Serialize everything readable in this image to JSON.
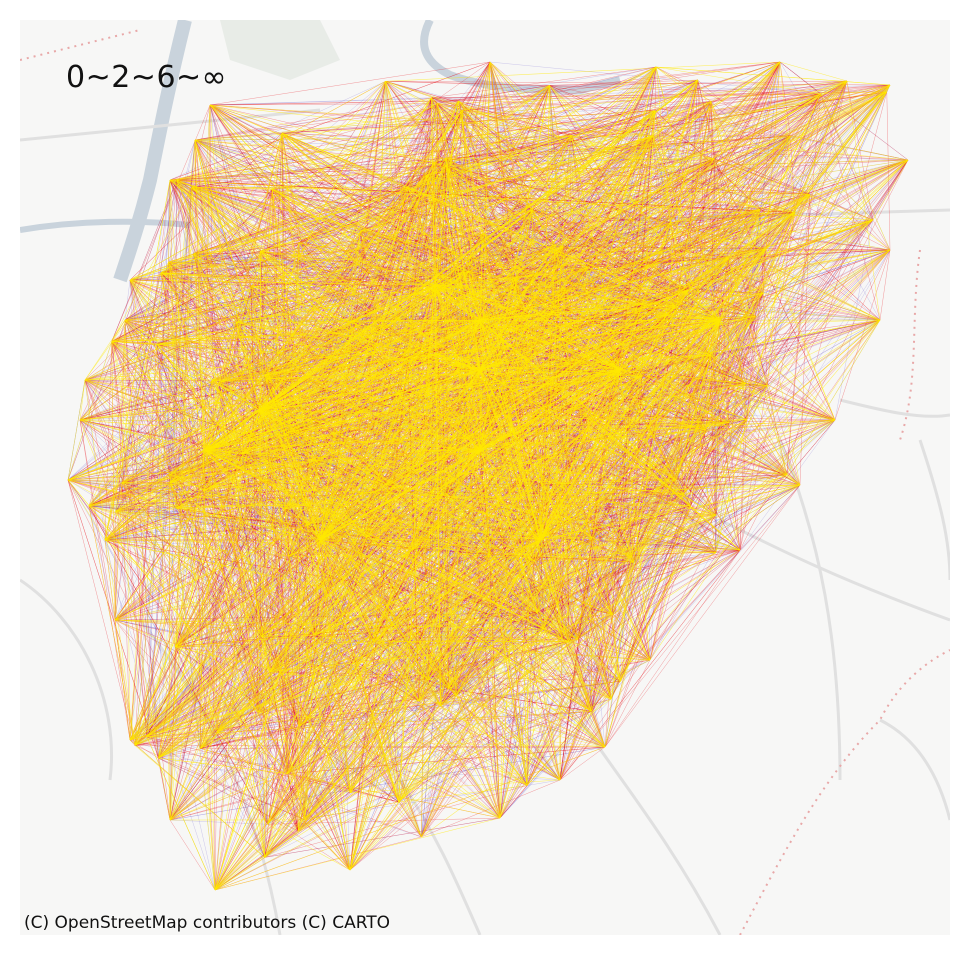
{
  "legend": {
    "title": "0~2~6~∞",
    "breaks": [
      0,
      2,
      6,
      "∞"
    ],
    "classes": [
      {
        "range": "0~2",
        "color": "#6a5acd"
      },
      {
        "range": "2~6",
        "color": "#e8151f"
      },
      {
        "range": "6~∞",
        "color": "#ffea00"
      }
    ]
  },
  "attribution": "(C) OpenStreetMap contributors (C) CARTO",
  "colors": {
    "background": "#f7f7f6",
    "river": "#c9d3dc",
    "roads": "#e0e0e0",
    "boundaries": "#e8a8a8",
    "low_flow": "#6a5acd",
    "mid_flow": "#e8151f",
    "high_flow": "#ffea00"
  }
}
